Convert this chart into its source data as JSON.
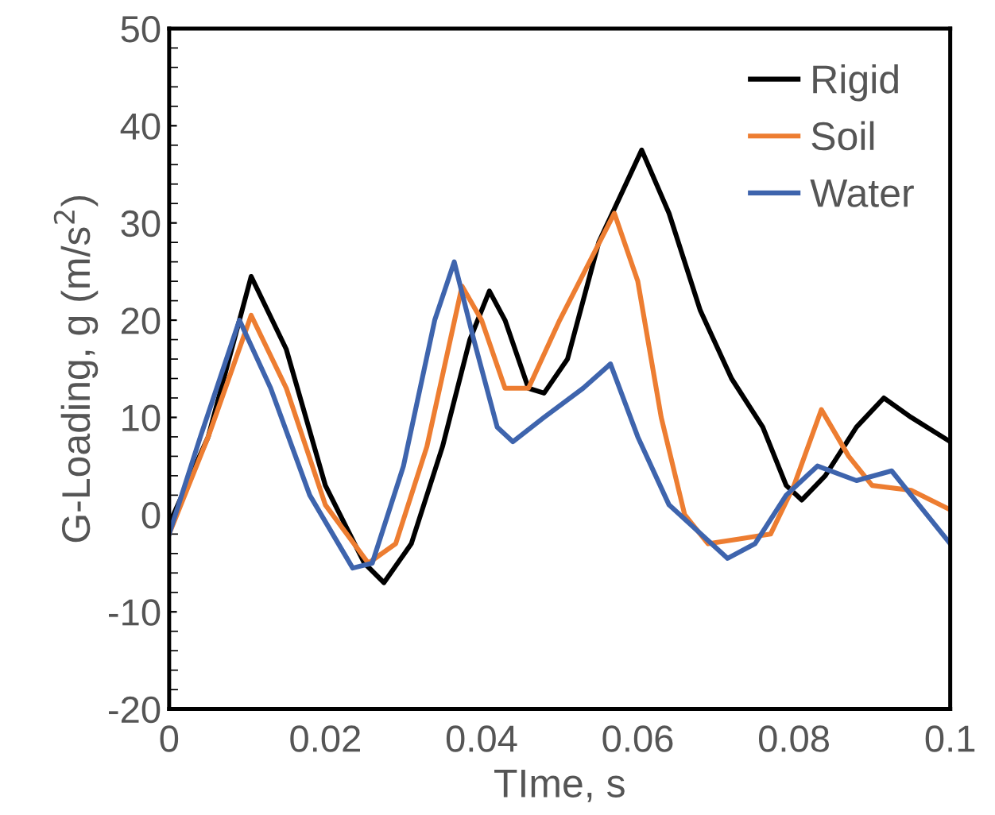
{
  "chart_data": {
    "type": "line",
    "xlabel": "TIme, s",
    "ylabel": "G-Loading, g (m/s$^{2}$)",
    "xlim": [
      0,
      0.1
    ],
    "xticks": [
      0,
      0.02,
      0.04,
      0.06,
      0.08,
      0.1
    ],
    "ylim": [
      -20,
      50
    ],
    "yticks": [
      -20,
      -10,
      0,
      10,
      20,
      30,
      40,
      50
    ],
    "grid": false,
    "legend": "top right",
    "marker": "none",
    "line_style": "solid",
    "series": [
      {
        "name": "Rigid",
        "color": "#000000",
        "x": [
          0,
          0.005,
          0.0105,
          0.015,
          0.02,
          0.025,
          0.0275,
          0.031,
          0.035,
          0.0385,
          0.041,
          0.043,
          0.046,
          0.048,
          0.051,
          0.055,
          0.0605,
          0.064,
          0.068,
          0.072,
          0.076,
          0.079,
          0.081,
          0.084,
          0.088,
          0.0915,
          0.095,
          0.1
        ],
        "values": [
          -1,
          8,
          24.5,
          17,
          3,
          -5,
          -7,
          -3,
          7,
          18,
          23,
          20,
          13,
          12.5,
          16,
          28,
          37.5,
          31,
          21,
          14,
          9,
          3,
          1.5,
          4,
          9,
          12,
          10,
          7.5
        ]
      },
      {
        "name": "Soil",
        "color": "#ed7d31",
        "x": [
          0,
          0.005,
          0.0105,
          0.015,
          0.02,
          0.0255,
          0.029,
          0.033,
          0.0375,
          0.04,
          0.043,
          0.046,
          0.05,
          0.057,
          0.06,
          0.063,
          0.066,
          0.069,
          0.073,
          0.077,
          0.08,
          0.0835,
          0.087,
          0.09,
          0.095,
          0.1
        ],
        "values": [
          -2,
          8,
          20.5,
          13,
          1,
          -5,
          -3,
          7,
          23.5,
          20,
          13,
          13,
          20,
          31,
          24,
          10,
          0,
          -3,
          -2.5,
          -2,
          3,
          10.8,
          6,
          3,
          2.5,
          0.5
        ]
      },
      {
        "name": "Water",
        "color": "#3e64ad",
        "x": [
          0,
          0.004,
          0.009,
          0.013,
          0.018,
          0.0235,
          0.026,
          0.03,
          0.034,
          0.0365,
          0.039,
          0.042,
          0.044,
          0.048,
          0.053,
          0.0565,
          0.06,
          0.064,
          0.0715,
          0.075,
          0.079,
          0.083,
          0.088,
          0.0925,
          0.096,
          0.1
        ],
        "values": [
          -2,
          8,
          20,
          13,
          2,
          -5.5,
          -5,
          5,
          20,
          26,
          18,
          9,
          7.5,
          10,
          13,
          15.5,
          8,
          1,
          -4.5,
          -3,
          2,
          5,
          3.5,
          4.5,
          1,
          -3
        ]
      }
    ]
  }
}
